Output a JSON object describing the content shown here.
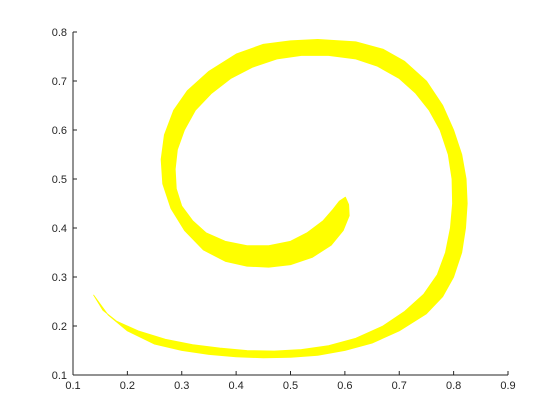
{
  "chart_data": {
    "type": "area",
    "title": "",
    "xlabel": "",
    "ylabel": "",
    "xlim": [
      0.1,
      0.9
    ],
    "ylim": [
      0.1,
      0.8
    ],
    "grid": false,
    "legend": "none",
    "fill_color": "#ffff00",
    "xticks": [
      "0.1",
      "0.2",
      "0.3",
      "0.4",
      "0.5",
      "0.6",
      "0.7",
      "0.8",
      "0.9"
    ],
    "yticks": [
      "0.1",
      "0.2",
      "0.3",
      "0.4",
      "0.5",
      "0.6",
      "0.7",
      "0.8"
    ],
    "series": [
      {
        "outer_edge": [
          [
            0.138,
            0.263
          ],
          [
            0.165,
            0.222
          ],
          [
            0.2,
            0.19
          ],
          [
            0.25,
            0.163
          ],
          [
            0.3,
            0.15
          ],
          [
            0.35,
            0.142
          ],
          [
            0.4,
            0.137
          ],
          [
            0.45,
            0.135
          ],
          [
            0.5,
            0.136
          ],
          [
            0.55,
            0.14
          ],
          [
            0.6,
            0.15
          ],
          [
            0.65,
            0.165
          ],
          [
            0.7,
            0.19
          ],
          [
            0.75,
            0.225
          ],
          [
            0.78,
            0.26
          ],
          [
            0.8,
            0.3
          ],
          [
            0.815,
            0.35
          ],
          [
            0.822,
            0.4
          ],
          [
            0.825,
            0.45
          ],
          [
            0.823,
            0.5
          ],
          [
            0.815,
            0.55
          ],
          [
            0.8,
            0.6
          ],
          [
            0.78,
            0.65
          ],
          [
            0.75,
            0.7
          ],
          [
            0.71,
            0.74
          ],
          [
            0.67,
            0.765
          ],
          [
            0.62,
            0.78
          ],
          [
            0.55,
            0.785
          ],
          [
            0.5,
            0.782
          ],
          [
            0.45,
            0.775
          ],
          [
            0.4,
            0.755
          ],
          [
            0.35,
            0.72
          ],
          [
            0.31,
            0.68
          ],
          [
            0.285,
            0.64
          ],
          [
            0.268,
            0.59
          ],
          [
            0.262,
            0.54
          ],
          [
            0.265,
            0.49
          ],
          [
            0.28,
            0.44
          ],
          [
            0.305,
            0.395
          ],
          [
            0.34,
            0.355
          ],
          [
            0.38,
            0.332
          ],
          [
            0.42,
            0.322
          ],
          [
            0.46,
            0.32
          ],
          [
            0.5,
            0.325
          ],
          [
            0.54,
            0.34
          ],
          [
            0.575,
            0.365
          ],
          [
            0.597,
            0.395
          ],
          [
            0.608,
            0.425
          ],
          [
            0.607,
            0.448
          ],
          [
            0.601,
            0.463
          ]
        ],
        "inner_edge": [
          [
            0.601,
            0.463
          ],
          [
            0.59,
            0.455
          ],
          [
            0.578,
            0.438
          ],
          [
            0.56,
            0.415
          ],
          [
            0.53,
            0.39
          ],
          [
            0.5,
            0.373
          ],
          [
            0.46,
            0.364
          ],
          [
            0.42,
            0.364
          ],
          [
            0.38,
            0.373
          ],
          [
            0.345,
            0.39
          ],
          [
            0.32,
            0.415
          ],
          [
            0.3,
            0.445
          ],
          [
            0.29,
            0.48
          ],
          [
            0.288,
            0.52
          ],
          [
            0.292,
            0.56
          ],
          [
            0.305,
            0.6
          ],
          [
            0.325,
            0.64
          ],
          [
            0.355,
            0.675
          ],
          [
            0.39,
            0.705
          ],
          [
            0.43,
            0.728
          ],
          [
            0.475,
            0.745
          ],
          [
            0.52,
            0.752
          ],
          [
            0.57,
            0.752
          ],
          [
            0.62,
            0.745
          ],
          [
            0.66,
            0.73
          ],
          [
            0.7,
            0.705
          ],
          [
            0.73,
            0.675
          ],
          [
            0.755,
            0.64
          ],
          [
            0.775,
            0.6
          ],
          [
            0.79,
            0.55
          ],
          [
            0.797,
            0.5
          ],
          [
            0.798,
            0.45
          ],
          [
            0.794,
            0.4
          ],
          [
            0.785,
            0.35
          ],
          [
            0.77,
            0.305
          ],
          [
            0.745,
            0.265
          ],
          [
            0.71,
            0.23
          ],
          [
            0.67,
            0.2
          ],
          [
            0.62,
            0.175
          ],
          [
            0.57,
            0.16
          ],
          [
            0.52,
            0.152
          ],
          [
            0.47,
            0.149
          ],
          [
            0.42,
            0.15
          ],
          [
            0.37,
            0.155
          ],
          [
            0.32,
            0.162
          ],
          [
            0.27,
            0.173
          ],
          [
            0.22,
            0.19
          ],
          [
            0.18,
            0.21
          ],
          [
            0.155,
            0.232
          ],
          [
            0.138,
            0.263
          ]
        ]
      }
    ]
  }
}
